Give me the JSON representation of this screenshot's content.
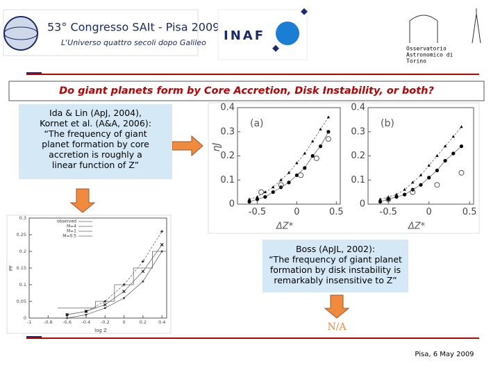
{
  "header": {
    "conference_title": "53° Congresso SAIt - Pisa 2009",
    "conference_subtitle": "L'Universo quattro secoli dopo Galileo",
    "institute": "INAF",
    "observatory": [
      "Osservatorio",
      "Astronomico di",
      "Torino"
    ]
  },
  "title": "Do giant planets form by Core Accretion, Disk Instability, or both?",
  "core_accretion_box": [
    "Ida & Lin (ApJ, 2004),",
    "Kornet et al. (A&A, 2006):",
    "“The frequency of giant",
    "planet formation by core",
    "accretion is roughly a",
    "linear function of Z”"
  ],
  "disk_instability_box": [
    "Boss (ApJL, 2002):",
    "“The frequency of giant planet",
    "formation by disk instability is",
    "remarkably insensitive to Z”"
  ],
  "result": "N/A",
  "footer": "Pisa, 6 May 2009",
  "figure_top": {
    "y_label": "ηJ",
    "panels": [
      {
        "label": "(a)",
        "x_label": "ΔZ*",
        "xlim": [
          -0.75,
          0.55
        ],
        "ylim": [
          0,
          0.4
        ],
        "xticks": [
          -0.5,
          0,
          0.5
        ],
        "yticks": [
          0,
          0.1,
          0.2,
          0.3,
          0.4
        ],
        "series": [
          {
            "marker": "dot",
            "x": [
              -0.6,
              -0.5,
              -0.4,
              -0.3,
              -0.2,
              -0.1,
              0,
              0.1,
              0.2,
              0.3,
              0.4
            ],
            "values": [
              0.01,
              0.02,
              0.03,
              0.05,
              0.07,
              0.09,
              0.12,
              0.15,
              0.2,
              0.24,
              0.3
            ]
          },
          {
            "marker": "triangle",
            "x": [
              -0.6,
              -0.5,
              -0.4,
              -0.3,
              -0.2,
              -0.1,
              0,
              0.1,
              0.2,
              0.3,
              0.4
            ],
            "values": [
              0.02,
              0.03,
              0.05,
              0.07,
              0.1,
              0.13,
              0.17,
              0.21,
              0.26,
              0.31,
              0.36
            ]
          },
          {
            "marker": "open",
            "x": [
              -0.45,
              -0.2,
              0.05,
              0.25,
              0.4
            ],
            "values": [
              0.05,
              0.08,
              0.12,
              0.19,
              0.27
            ]
          }
        ]
      },
      {
        "label": "(b)",
        "x_label": "ΔZ*",
        "xlim": [
          -0.75,
          0.55
        ],
        "ylim": [
          0,
          0.4
        ],
        "xticks": [
          -0.5,
          0,
          0.5
        ],
        "yticks": [
          0,
          0.1,
          0.2,
          0.3,
          0.4
        ],
        "series": [
          {
            "marker": "dot",
            "x": [
              -0.6,
              -0.5,
              -0.4,
              -0.3,
              -0.2,
              -0.1,
              0,
              0.1,
              0.2,
              0.3,
              0.4
            ],
            "values": [
              0.01,
              0.02,
              0.03,
              0.04,
              0.06,
              0.08,
              0.11,
              0.14,
              0.18,
              0.21,
              0.24
            ]
          },
          {
            "marker": "triangle",
            "x": [
              -0.6,
              -0.5,
              -0.4,
              -0.3,
              -0.2,
              -0.1,
              0,
              0.1,
              0.2,
              0.3,
              0.4
            ],
            "values": [
              0.02,
              0.03,
              0.04,
              0.06,
              0.09,
              0.12,
              0.16,
              0.2,
              0.24,
              0.28,
              0.32
            ]
          },
          {
            "marker": "open",
            "x": [
              -0.5,
              -0.2,
              0.1,
              0.4
            ],
            "values": [
              0.02,
              0.05,
              0.08,
              0.13
            ]
          }
        ]
      }
    ]
  },
  "figure_bottom": {
    "x_label": "log Z",
    "y_label": "PF",
    "xlim": [
      -1,
      0.45
    ],
    "ylim": [
      0,
      0.3
    ],
    "xticks": [
      -1,
      -0.8,
      -0.6,
      -0.4,
      -0.2,
      0,
      0.2,
      0.4
    ],
    "yticks": [
      0,
      0.05,
      0.1,
      0.15,
      0.2,
      0.25,
      0.3
    ],
    "series": [
      {
        "name": "observed",
        "marker": "step",
        "x": [
          -0.7,
          -0.5,
          -0.3,
          -0.1,
          0.1,
          0.3,
          0.45
        ],
        "values": [
          0.03,
          0.03,
          0.05,
          0.1,
          0.15,
          0.2,
          0.25
        ]
      },
      {
        "name": "M=4",
        "marker": "plus",
        "x": [
          -0.6,
          -0.4,
          -0.2,
          0,
          0.2,
          0.4
        ],
        "values": [
          0.01,
          0.02,
          0.05,
          0.1,
          0.17,
          0.26
        ]
      },
      {
        "name": "M=1",
        "marker": "cross",
        "x": [
          -0.6,
          -0.4,
          -0.2,
          0,
          0.2,
          0.4
        ],
        "values": [
          0.01,
          0.02,
          0.04,
          0.08,
          0.14,
          0.22
        ]
      },
      {
        "name": "M=0.5",
        "marker": "star",
        "x": [
          -0.6,
          -0.4,
          -0.2,
          0,
          0.2,
          0.4
        ],
        "values": [
          0.0,
          0.01,
          0.03,
          0.06,
          0.11,
          0.2
        ]
      }
    ]
  }
}
